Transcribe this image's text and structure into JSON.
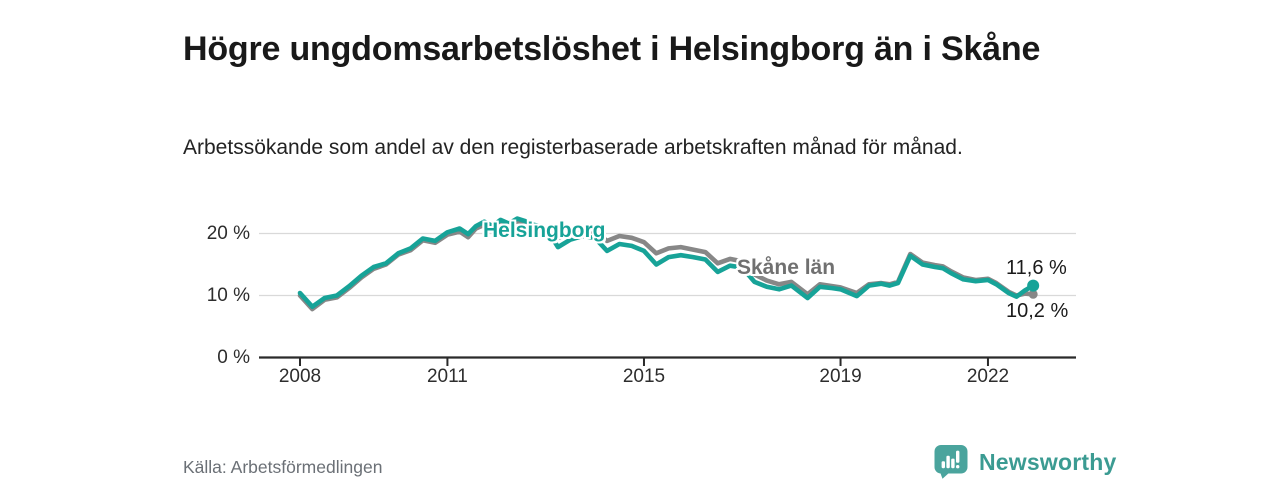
{
  "header": {
    "title": "Högre ungdomsarbetslöshet i Helsingborg än i Skåne",
    "subtitle": "Arbetssökande som andel av den registerbaserade arbetskraften månad för månad."
  },
  "footer": {
    "source": "Källa: Arbetsförmedlingen",
    "brand_name": "Newsworthy",
    "brand_icon": "newsworthy-speech-bubble-barchart-icon"
  },
  "colors": {
    "helsingborg": "#17a398",
    "skane_line": "#878787",
    "skane_label": "#707070",
    "grid": "#d9d9d9",
    "axis": "#2a2a2a",
    "brand": "#3b9b92"
  },
  "chart_data": {
    "type": "line",
    "title": "Högre ungdomsarbetslöshet i Helsingborg än i Skåne",
    "subtitle": "Arbetssökande som andel av den registerbaserade arbetskraften månad för månad.",
    "xlabel": "",
    "ylabel": "",
    "grid": "horizontal",
    "legend_position": "inline-labels",
    "xlim": [
      2007.7,
      2023.9
    ],
    "ylim": [
      0,
      24
    ],
    "x_ticks": [
      2008,
      2011,
      2015,
      2019,
      2022
    ],
    "y_ticks": [
      {
        "v": 0,
        "label": "0 %"
      },
      {
        "v": 10,
        "label": "10 %"
      },
      {
        "v": 20,
        "label": "20 %"
      }
    ],
    "y_gridlines": [
      10,
      20
    ],
    "x": [
      2008.0,
      2008.25,
      2008.5,
      2008.75,
      2009.0,
      2009.25,
      2009.5,
      2009.75,
      2010.0,
      2010.25,
      2010.5,
      2010.75,
      2011.0,
      2011.25,
      2011.42,
      2011.58,
      2011.75,
      2011.92,
      2012.08,
      2012.25,
      2012.42,
      2012.58,
      2012.75,
      2013.0,
      2013.25,
      2013.5,
      2013.75,
      2014.0,
      2014.25,
      2014.5,
      2014.75,
      2015.0,
      2015.25,
      2015.5,
      2015.75,
      2016.0,
      2016.25,
      2016.5,
      2016.75,
      2017.0,
      2017.25,
      2017.5,
      2017.75,
      2018.0,
      2018.33,
      2018.58,
      2018.83,
      2019.0,
      2019.33,
      2019.58,
      2019.83,
      2020.0,
      2020.17,
      2020.42,
      2020.67,
      2020.92,
      2021.08,
      2021.25,
      2021.5,
      2021.75,
      2022.0,
      2022.17,
      2022.42,
      2022.58,
      2022.75,
      2022.92
    ],
    "series": [
      {
        "name": "Helsingborg",
        "color": "#17a398",
        "end_label": "11,6 %",
        "end_value": 11.6,
        "values": [
          10.4,
          8.2,
          9.6,
          10.0,
          11.5,
          13.2,
          14.6,
          15.2,
          16.8,
          17.6,
          19.2,
          18.8,
          20.2,
          20.8,
          19.9,
          21.2,
          21.9,
          21.2,
          22.2,
          21.6,
          22.4,
          22.0,
          21.4,
          21.0,
          17.8,
          19.0,
          19.6,
          19.3,
          17.2,
          18.3,
          18.0,
          17.2,
          15.0,
          16.2,
          16.5,
          16.2,
          15.8,
          13.8,
          14.8,
          14.5,
          12.2,
          11.4,
          11.0,
          11.6,
          9.6,
          11.4,
          11.2,
          11.0,
          9.9,
          11.6,
          11.9,
          11.6,
          12.0,
          16.4,
          15.0,
          14.6,
          14.4,
          13.6,
          12.6,
          12.3,
          12.5,
          11.8,
          10.4,
          9.8,
          10.8,
          11.6
        ]
      },
      {
        "name": "Skåne län",
        "color": "#878787",
        "end_label": "10,2 %",
        "end_value": 10.2,
        "values": [
          10.0,
          7.8,
          9.3,
          9.7,
          11.2,
          12.9,
          14.3,
          15.0,
          16.6,
          17.3,
          18.9,
          18.5,
          19.8,
          20.3,
          19.4,
          20.8,
          21.4,
          20.7,
          21.6,
          21.1,
          21.8,
          21.5,
          21.0,
          20.8,
          19.3,
          20.0,
          20.4,
          20.3,
          18.8,
          19.6,
          19.3,
          18.6,
          16.8,
          17.6,
          17.8,
          17.4,
          17.0,
          15.2,
          15.9,
          15.5,
          13.4,
          12.4,
          11.8,
          12.2,
          10.2,
          11.8,
          11.5,
          11.3,
          10.4,
          11.8,
          12.0,
          11.8,
          12.2,
          16.7,
          15.3,
          14.9,
          14.7,
          13.9,
          12.9,
          12.5,
          12.7,
          12.0,
          10.6,
          10.0,
          10.3,
          10.2
        ]
      }
    ]
  }
}
